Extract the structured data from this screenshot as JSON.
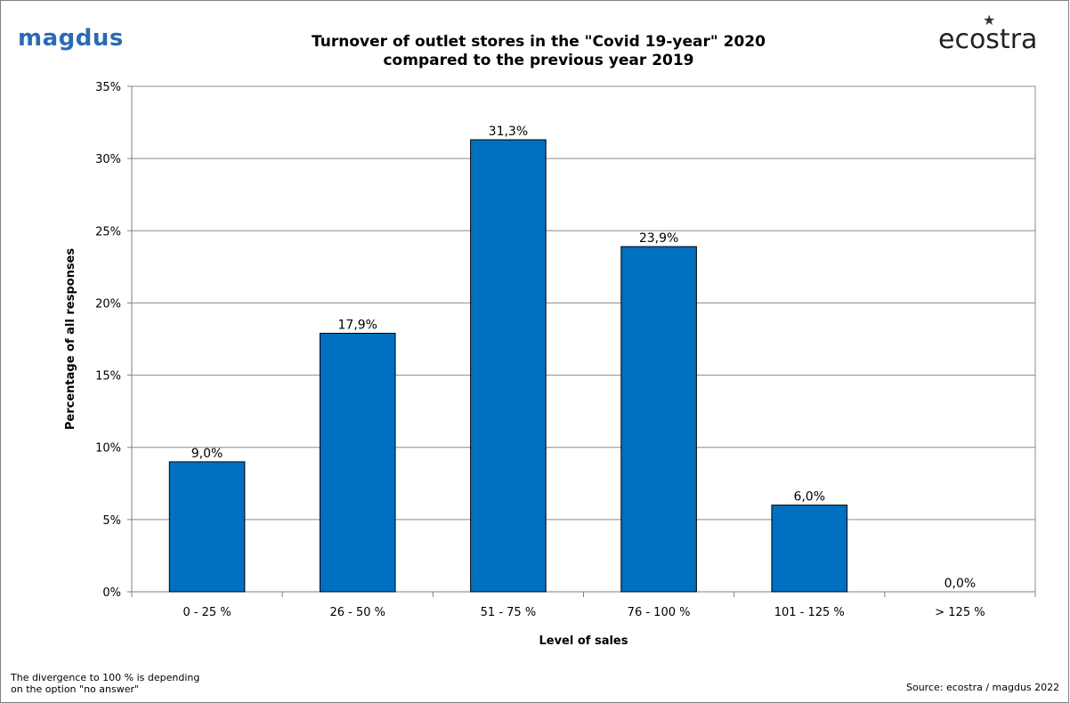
{
  "header": {
    "logo_left": "magdus",
    "logo_right": "ecostra"
  },
  "chart_data": {
    "type": "bar",
    "title_line1": "Turnover of outlet stores in the \"Covid 19-year\" 2020",
    "title_line2": "compared to the previous year 2019",
    "xlabel": "Level of sales",
    "ylabel": "Percentage of all responses",
    "categories": [
      "0 - 25 %",
      "26 - 50 %",
      "51 - 75 %",
      "76 - 100 %",
      "101 - 125 %",
      "> 125 %"
    ],
    "values": [
      9.0,
      17.9,
      31.3,
      23.9,
      6.0,
      0.0
    ],
    "data_labels": [
      "9,0%",
      "17,9%",
      "31,3%",
      "23,9%",
      "6,0%",
      "0,0%"
    ],
    "ylim": [
      0,
      35
    ],
    "yticks": [
      0,
      5,
      10,
      15,
      20,
      25,
      30,
      35
    ],
    "ytick_labels": [
      "0%",
      "5%",
      "10%",
      "15%",
      "20%",
      "25%",
      "30%",
      "35%"
    ],
    "grid": true,
    "legend": "none",
    "bar_color": "#0070c0"
  },
  "footer": {
    "note_line1": "The divergence to 100 %  is depending",
    "note_line2": "on the option \"no answer\"",
    "source": "Source: ecostra / magdus 2022"
  }
}
